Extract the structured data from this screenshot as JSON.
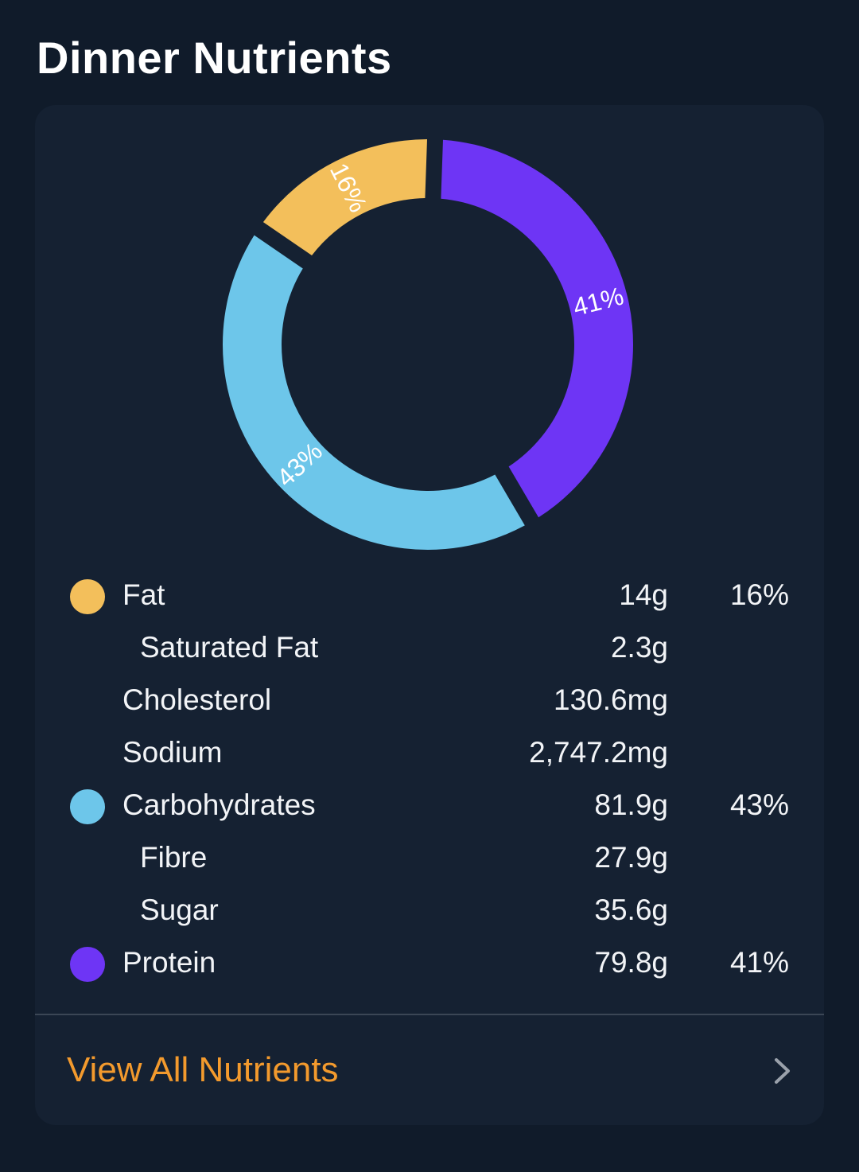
{
  "page": {
    "title": "Dinner Nutrients"
  },
  "chart_data": {
    "type": "pie",
    "categories": [
      "Fat",
      "Carbohydrates",
      "Protein"
    ],
    "values": [
      16,
      43,
      41
    ],
    "labels": [
      "16%",
      "43%",
      "41%"
    ],
    "colors": [
      "#f3bf5b",
      "#6dc6ea",
      "#6e35f5"
    ]
  },
  "nutrients": [
    {
      "name": "Fat",
      "amount": "14g",
      "pct": "16%",
      "dot_color": "#f3bf5b"
    },
    {
      "name": "Saturated Fat",
      "amount": "2.3g",
      "pct": ""
    },
    {
      "name": "Cholesterol",
      "amount": "130.6mg",
      "pct": ""
    },
    {
      "name": "Sodium",
      "amount": "2,747.2mg",
      "pct": ""
    },
    {
      "name": "Carbohydrates",
      "amount": "81.9g",
      "pct": "43%",
      "dot_color": "#6dc6ea"
    },
    {
      "name": "Fibre",
      "amount": "27.9g",
      "pct": ""
    },
    {
      "name": "Sugar",
      "amount": "35.6g",
      "pct": ""
    },
    {
      "name": "Protein",
      "amount": "79.8g",
      "pct": "41%",
      "dot_color": "#6e35f5"
    }
  ],
  "footer": {
    "view_all_label": "View All Nutrients",
    "chevron_icon": "chevron-right-icon"
  },
  "colors": {
    "background": "#101b2a",
    "card": "#152132",
    "accent": "#f39a2d"
  }
}
